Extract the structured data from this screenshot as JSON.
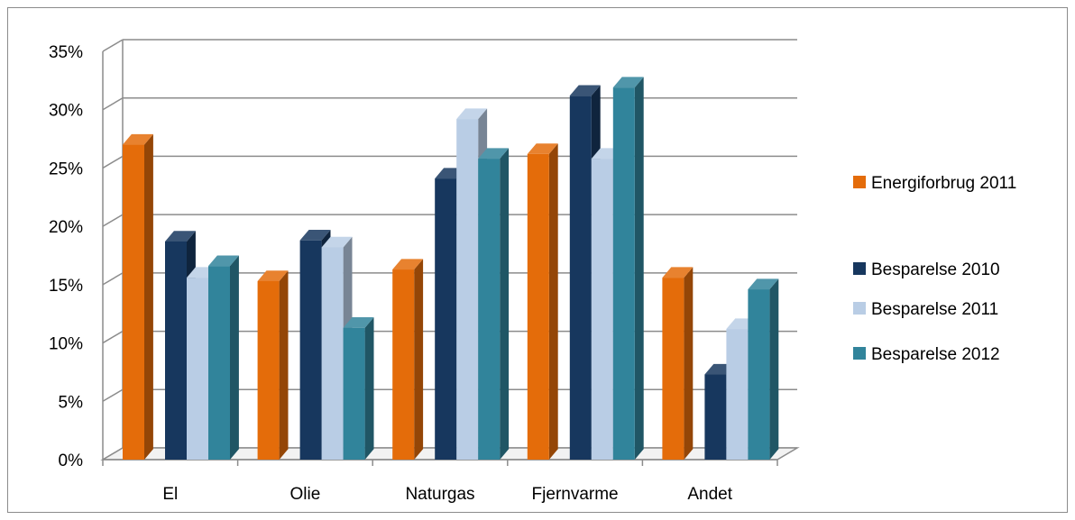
{
  "chart_data": {
    "type": "bar",
    "categories": [
      "El",
      "Olie",
      "Naturgas",
      "Fjernvarme",
      "Andet"
    ],
    "series": [
      {
        "name": "Energiforbrug 2011",
        "color": "#E46C0A",
        "values": [
          27,
          15.3,
          16.3,
          26.2,
          15.6
        ]
      },
      {
        "name": "Besparelse 2010",
        "color": "#17375E",
        "values": [
          18.7,
          18.8,
          24.1,
          31.2,
          7.3
        ]
      },
      {
        "name": "Besparelse 2011",
        "color": "#B9CDE5",
        "values": [
          15.6,
          18.2,
          29.2,
          25.8,
          11.2
        ]
      },
      {
        "name": "Besparelse 2012",
        "color": "#31849B",
        "values": [
          16.6,
          11.3,
          25.8,
          31.9,
          14.6
        ]
      }
    ],
    "yticks": [
      "0%",
      "5%",
      "10%",
      "15%",
      "20%",
      "25%",
      "30%",
      "35%"
    ],
    "ylim": [
      0,
      35
    ],
    "ystep": 5,
    "grid": true,
    "legend_position": "right",
    "title": "",
    "xlabel": "",
    "ylabel": ""
  }
}
